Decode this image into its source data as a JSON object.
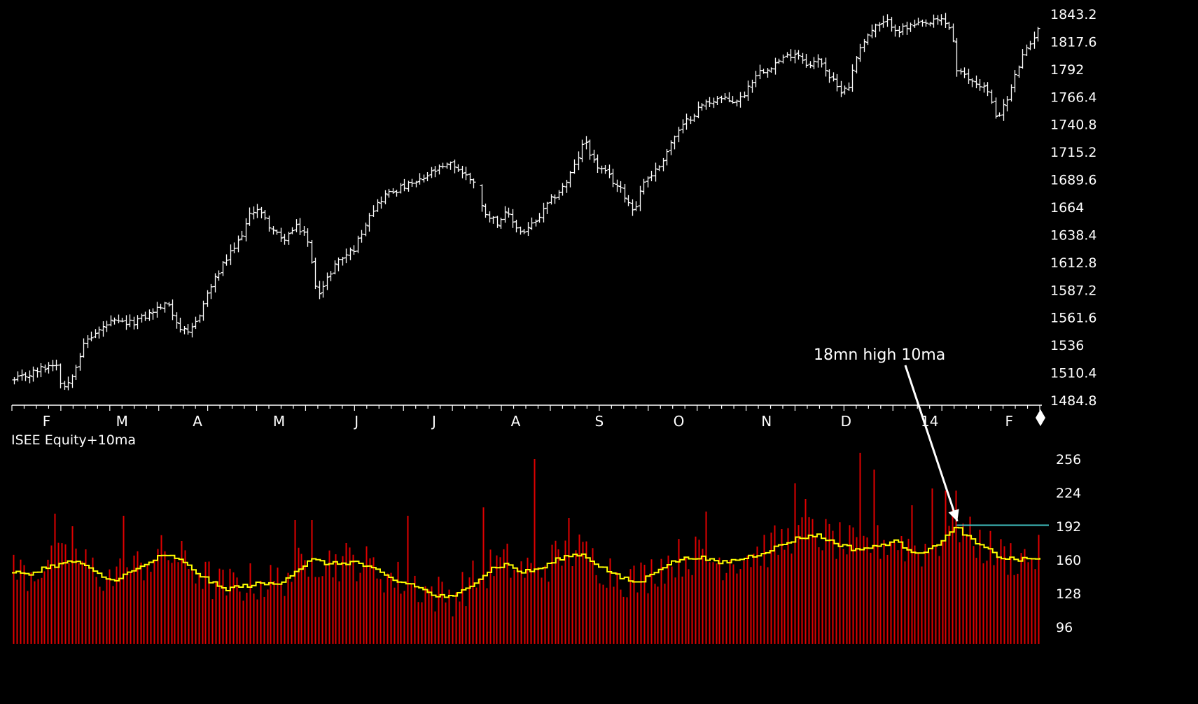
{
  "colors": {
    "background": "#000000",
    "price_bars": "#ffffff",
    "volume_bars": "#e00000",
    "moving_average": "#ffff00",
    "high_line": "#40c0c0",
    "annotation": "#ffffff"
  },
  "chart_data": [
    {
      "type": "ohlc",
      "title": "",
      "xlabel": "",
      "ylabel": "",
      "months": [
        "F",
        "M",
        "A",
        "M",
        "J",
        "J",
        "A",
        "S",
        "O",
        "N",
        "D",
        "14",
        "F"
      ],
      "ylim": [
        1484.8,
        1843.2
      ],
      "yticks": [
        "1843.2",
        "1817.6",
        "1792",
        "1766.4",
        "1740.8",
        "1715.2",
        "1689.6",
        "1664",
        "1638.4",
        "1612.8",
        "1587.2",
        "1561.6",
        "1536",
        "1510.4",
        "1484.8"
      ],
      "close_path": [
        {
          "m": 0.0,
          "v": 1502
        },
        {
          "m": 0.3,
          "v": 1508
        },
        {
          "m": 0.6,
          "v": 1514
        },
        {
          "m": 0.9,
          "v": 1520
        },
        {
          "m": 1.0,
          "v": 1500
        },
        {
          "m": 1.1,
          "v": 1497
        },
        {
          "m": 1.3,
          "v": 1518
        },
        {
          "m": 1.5,
          "v": 1540
        },
        {
          "m": 2.0,
          "v": 1557
        },
        {
          "m": 2.4,
          "v": 1556
        },
        {
          "m": 2.7,
          "v": 1562
        },
        {
          "m": 3.0,
          "v": 1571
        },
        {
          "m": 3.2,
          "v": 1574
        },
        {
          "m": 3.4,
          "v": 1553
        },
        {
          "m": 3.6,
          "v": 1545
        },
        {
          "m": 3.8,
          "v": 1562
        },
        {
          "m": 4.0,
          "v": 1585
        },
        {
          "m": 4.3,
          "v": 1610
        },
        {
          "m": 4.6,
          "v": 1630
        },
        {
          "m": 4.9,
          "v": 1660
        },
        {
          "m": 5.0,
          "v": 1664
        },
        {
          "m": 5.2,
          "v": 1650
        },
        {
          "m": 5.5,
          "v": 1633
        },
        {
          "m": 5.8,
          "v": 1645
        },
        {
          "m": 6.0,
          "v": 1640
        },
        {
          "m": 6.2,
          "v": 1592
        },
        {
          "m": 6.3,
          "v": 1585
        },
        {
          "m": 6.6,
          "v": 1612
        },
        {
          "m": 7.0,
          "v": 1626
        },
        {
          "m": 7.3,
          "v": 1658
        },
        {
          "m": 7.6,
          "v": 1675
        },
        {
          "m": 8.0,
          "v": 1683
        },
        {
          "m": 8.3,
          "v": 1687
        },
        {
          "m": 8.6,
          "v": 1697
        },
        {
          "m": 9.0,
          "v": 1704
        },
        {
          "m": 9.3,
          "v": 1692
        },
        {
          "m": 9.5,
          "v": 1687
        },
        {
          "m": 9.6,
          "v": 1662
        },
        {
          "m": 9.9,
          "v": 1650
        },
        {
          "m": 10.1,
          "v": 1658
        },
        {
          "m": 10.4,
          "v": 1640
        },
        {
          "m": 10.7,
          "v": 1650
        },
        {
          "m": 11.0,
          "v": 1670
        },
        {
          "m": 11.3,
          "v": 1685
        },
        {
          "m": 11.5,
          "v": 1703
        },
        {
          "m": 11.7,
          "v": 1727
        },
        {
          "m": 11.9,
          "v": 1704
        },
        {
          "m": 12.2,
          "v": 1692
        },
        {
          "m": 12.5,
          "v": 1676
        },
        {
          "m": 12.7,
          "v": 1660
        },
        {
          "m": 12.9,
          "v": 1688
        },
        {
          "m": 13.2,
          "v": 1700
        },
        {
          "m": 13.5,
          "v": 1727
        },
        {
          "m": 13.8,
          "v": 1745
        },
        {
          "m": 14.1,
          "v": 1759
        },
        {
          "m": 14.4,
          "v": 1765
        },
        {
          "m": 14.7,
          "v": 1762
        },
        {
          "m": 14.9,
          "v": 1765
        },
        {
          "m": 15.2,
          "v": 1788
        },
        {
          "m": 15.5,
          "v": 1795
        },
        {
          "m": 15.8,
          "v": 1803
        },
        {
          "m": 16.0,
          "v": 1808
        },
        {
          "m": 16.3,
          "v": 1795
        },
        {
          "m": 16.5,
          "v": 1802
        },
        {
          "m": 16.7,
          "v": 1785
        },
        {
          "m": 16.9,
          "v": 1772
        },
        {
          "m": 17.1,
          "v": 1777
        },
        {
          "m": 17.3,
          "v": 1812
        },
        {
          "m": 17.6,
          "v": 1830
        },
        {
          "m": 17.9,
          "v": 1836
        },
        {
          "m": 18.1,
          "v": 1828
        },
        {
          "m": 18.4,
          "v": 1832
        },
        {
          "m": 18.7,
          "v": 1834
        },
        {
          "m": 19.0,
          "v": 1838
        },
        {
          "m": 19.2,
          "v": 1828
        },
        {
          "m": 19.3,
          "v": 1790
        },
        {
          "m": 19.6,
          "v": 1781
        },
        {
          "m": 19.9,
          "v": 1775
        },
        {
          "m": 20.1,
          "v": 1748
        },
        {
          "m": 20.3,
          "v": 1760
        },
        {
          "m": 20.6,
          "v": 1800
        },
        {
          "m": 20.8,
          "v": 1815
        },
        {
          "m": 21.0,
          "v": 1835
        }
      ],
      "gaps": [
        9.5
      ]
    },
    {
      "type": "bar+line",
      "title": "ISEE Equity+10ma",
      "xlabel": "",
      "ylabel": "",
      "ylim": [
        80,
        266
      ],
      "yticks": [
        "256",
        "224",
        "192",
        "160",
        "128",
        "96"
      ],
      "ma_path": [
        {
          "m": 0.0,
          "v": 149
        },
        {
          "m": 0.3,
          "v": 145
        },
        {
          "m": 0.6,
          "v": 152
        },
        {
          "m": 1.0,
          "v": 156
        },
        {
          "m": 1.3,
          "v": 159
        },
        {
          "m": 1.6,
          "v": 150
        },
        {
          "m": 2.0,
          "v": 140
        },
        {
          "m": 2.5,
          "v": 150
        },
        {
          "m": 3.0,
          "v": 163
        },
        {
          "m": 3.3,
          "v": 163
        },
        {
          "m": 3.7,
          "v": 150
        },
        {
          "m": 4.0,
          "v": 140
        },
        {
          "m": 4.3,
          "v": 132
        },
        {
          "m": 4.7,
          "v": 135
        },
        {
          "m": 5.0,
          "v": 137
        },
        {
          "m": 5.4,
          "v": 137
        },
        {
          "m": 5.8,
          "v": 150
        },
        {
          "m": 6.1,
          "v": 160
        },
        {
          "m": 6.5,
          "v": 156
        },
        {
          "m": 7.0,
          "v": 158
        },
        {
          "m": 7.4,
          "v": 150
        },
        {
          "m": 7.8,
          "v": 140
        },
        {
          "m": 8.2,
          "v": 136
        },
        {
          "m": 8.6,
          "v": 126
        },
        {
          "m": 9.0,
          "v": 124
        },
        {
          "m": 9.4,
          "v": 138
        },
        {
          "m": 9.8,
          "v": 152
        },
        {
          "m": 10.1,
          "v": 156
        },
        {
          "m": 10.4,
          "v": 148
        },
        {
          "m": 10.8,
          "v": 152
        },
        {
          "m": 11.2,
          "v": 162
        },
        {
          "m": 11.6,
          "v": 166
        },
        {
          "m": 12.0,
          "v": 154
        },
        {
          "m": 12.4,
          "v": 143
        },
        {
          "m": 12.8,
          "v": 138
        },
        {
          "m": 13.2,
          "v": 152
        },
        {
          "m": 13.6,
          "v": 160
        },
        {
          "m": 14.0,
          "v": 163
        },
        {
          "m": 14.4,
          "v": 157
        },
        {
          "m": 14.8,
          "v": 160
        },
        {
          "m": 15.2,
          "v": 165
        },
        {
          "m": 15.6,
          "v": 172
        },
        {
          "m": 16.0,
          "v": 180
        },
        {
          "m": 16.4,
          "v": 184
        },
        {
          "m": 16.8,
          "v": 176
        },
        {
          "m": 17.2,
          "v": 170
        },
        {
          "m": 17.6,
          "v": 172
        },
        {
          "m": 18.0,
          "v": 178
        },
        {
          "m": 18.4,
          "v": 168
        },
        {
          "m": 18.7,
          "v": 168
        },
        {
          "m": 19.0,
          "v": 180
        },
        {
          "m": 19.3,
          "v": 191
        },
        {
          "m": 19.6,
          "v": 178
        },
        {
          "m": 19.9,
          "v": 170
        },
        {
          "m": 20.2,
          "v": 162
        },
        {
          "m": 20.6,
          "v": 160
        },
        {
          "m": 21.0,
          "v": 162
        }
      ],
      "spikes": [
        {
          "m": 0.9,
          "v": 204
        },
        {
          "m": 1.2,
          "v": 192
        },
        {
          "m": 2.3,
          "v": 202
        },
        {
          "m": 2.8,
          "v": 186
        },
        {
          "m": 5.8,
          "v": 198
        },
        {
          "m": 6.1,
          "v": 198
        },
        {
          "m": 7.0,
          "v": 192
        },
        {
          "m": 8.1,
          "v": 202
        },
        {
          "m": 9.6,
          "v": 210
        },
        {
          "m": 10.7,
          "v": 256
        },
        {
          "m": 11.4,
          "v": 200
        },
        {
          "m": 14.2,
          "v": 206
        },
        {
          "m": 15.4,
          "v": 212
        },
        {
          "m": 16.0,
          "v": 233
        },
        {
          "m": 16.2,
          "v": 218
        },
        {
          "m": 17.3,
          "v": 262
        },
        {
          "m": 17.6,
          "v": 246
        },
        {
          "m": 18.4,
          "v": 212
        },
        {
          "m": 18.8,
          "v": 228
        },
        {
          "m": 19.1,
          "v": 226
        },
        {
          "m": 19.3,
          "v": 226
        }
      ],
      "high_line_start": 19.3
    }
  ],
  "annotation": {
    "text": "18mn high 10ma",
    "target_month": 19.3,
    "target_value": 194
  }
}
